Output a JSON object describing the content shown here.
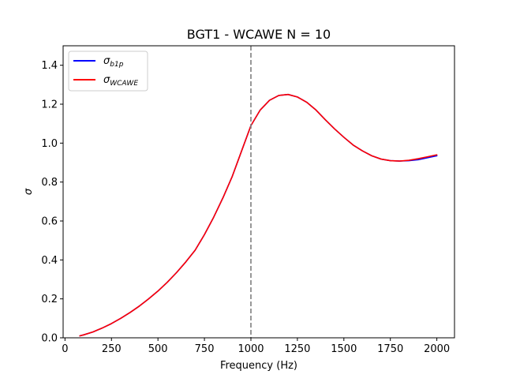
{
  "chart_data": {
    "type": "line",
    "title": "BGT1 - WCAWE N = 10",
    "xlabel": "Frequency (Hz)",
    "ylabel": "σ",
    "xlim": [
      -10,
      2095
    ],
    "ylim": [
      0.0,
      1.5
    ],
    "xticks": [
      0,
      250,
      500,
      750,
      1000,
      1250,
      1500,
      1750,
      2000
    ],
    "xtick_labels": [
      "0",
      "250",
      "500",
      "750",
      "1000",
      "1250",
      "1500",
      "1750",
      "2000"
    ],
    "yticks": [
      0.0,
      0.2,
      0.4,
      0.6,
      0.8,
      1.0,
      1.2,
      1.4
    ],
    "ytick_labels": [
      "0.0",
      "0.2",
      "0.4",
      "0.6",
      "0.8",
      "1.0",
      "1.2",
      "1.4"
    ],
    "grid": false,
    "legend_position": "top-left",
    "vline": {
      "x": 1000,
      "style": "dashed",
      "color": "#7f7f7f"
    },
    "series": [
      {
        "name": "σ_b1p",
        "legend_main": "σ",
        "legend_sub": "b1p",
        "color": "#0000ff",
        "x": [
          80,
          100,
          150,
          200,
          250,
          300,
          350,
          400,
          450,
          500,
          550,
          600,
          650,
          700,
          750,
          800,
          850,
          900,
          950,
          1000,
          1050,
          1100,
          1150,
          1200,
          1250,
          1300,
          1350,
          1400,
          1450,
          1500,
          1550,
          1600,
          1650,
          1700,
          1750,
          1800,
          1850,
          1900,
          1950,
          2000
        ],
        "y": [
          0.01,
          0.015,
          0.03,
          0.05,
          0.073,
          0.1,
          0.13,
          0.163,
          0.2,
          0.24,
          0.285,
          0.335,
          0.39,
          0.45,
          0.53,
          0.62,
          0.72,
          0.83,
          0.96,
          1.09,
          1.17,
          1.22,
          1.245,
          1.25,
          1.237,
          1.21,
          1.17,
          1.12,
          1.073,
          1.03,
          0.99,
          0.96,
          0.935,
          0.918,
          0.91,
          0.908,
          0.91,
          0.915,
          0.925,
          0.935
        ]
      },
      {
        "name": "σ_WCAWE",
        "legend_main": "σ",
        "legend_sub": "WCAWE",
        "color": "#ff0000",
        "x": [
          80,
          100,
          150,
          200,
          250,
          300,
          350,
          400,
          450,
          500,
          550,
          600,
          650,
          700,
          750,
          800,
          850,
          900,
          950,
          1000,
          1050,
          1100,
          1150,
          1200,
          1250,
          1300,
          1350,
          1400,
          1450,
          1500,
          1550,
          1600,
          1650,
          1700,
          1750,
          1800,
          1850,
          1900,
          1950,
          2000
        ],
        "y": [
          0.01,
          0.015,
          0.03,
          0.05,
          0.073,
          0.1,
          0.13,
          0.163,
          0.2,
          0.24,
          0.285,
          0.335,
          0.39,
          0.45,
          0.53,
          0.62,
          0.72,
          0.83,
          0.96,
          1.09,
          1.17,
          1.22,
          1.245,
          1.25,
          1.237,
          1.21,
          1.17,
          1.12,
          1.073,
          1.03,
          0.99,
          0.96,
          0.935,
          0.918,
          0.91,
          0.908,
          0.912,
          0.92,
          0.93,
          0.94
        ]
      }
    ]
  }
}
